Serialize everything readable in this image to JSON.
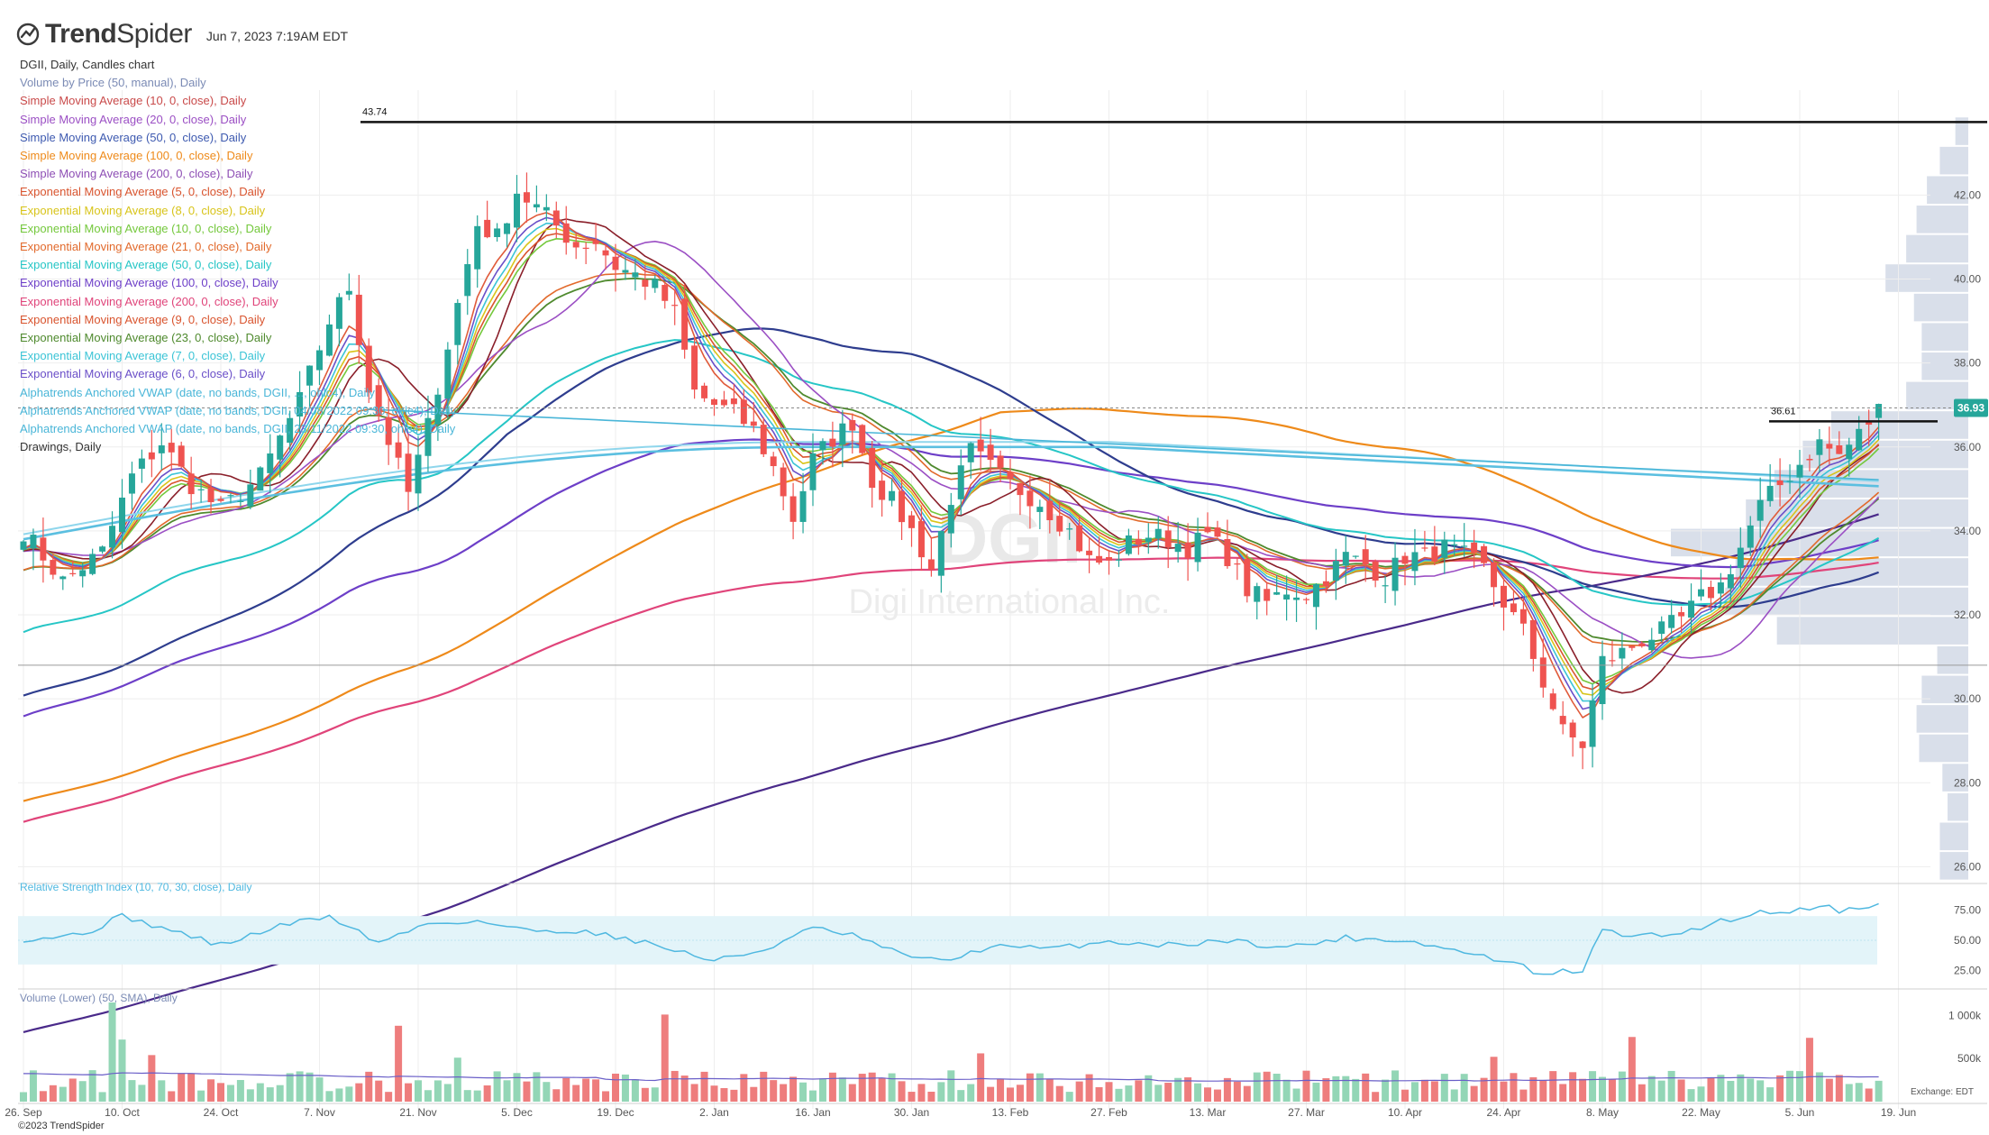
{
  "header": {
    "brand_bold": "Trend",
    "brand_rest": "Spider",
    "timestamp": "Jun 7, 2023 7:19AM EDT",
    "logo_icon": "trendspider-logo-icon"
  },
  "legend": [
    {
      "text": "DGII, Daily, Candles chart",
      "color": "#333333"
    },
    {
      "text": "Volume by Price (50, manual), Daily",
      "color": "#7b8bb5"
    },
    {
      "text": "Simple Moving Average (10, 0, close), Daily",
      "color": "#c94a4a"
    },
    {
      "text": "Simple Moving Average (20, 0, close), Daily",
      "color": "#9b4fc4"
    },
    {
      "text": "Simple Moving Average (50, 0, close), Daily",
      "color": "#3e5ab0"
    },
    {
      "text": "Simple Moving Average (100, 0, close), Daily",
      "color": "#ee8a1a"
    },
    {
      "text": "Simple Moving Average (200, 0, close), Daily",
      "color": "#8e4fb5"
    },
    {
      "text": "Exponential Moving Average (5, 0, close), Daily",
      "color": "#d9542e"
    },
    {
      "text": "Exponential Moving Average (8, 0, close), Daily",
      "color": "#d8c41a"
    },
    {
      "text": "Exponential Moving Average (10, 0, close), Daily",
      "color": "#74c83c"
    },
    {
      "text": "Exponential Moving Average (21, 0, close), Daily",
      "color": "#e26a2c"
    },
    {
      "text": "Exponential Moving Average (50, 0, close), Daily",
      "color": "#26c6c6"
    },
    {
      "text": "Exponential Moving Average (100, 0, close), Daily",
      "color": "#6d3fc8"
    },
    {
      "text": "Exponential Moving Average (200, 0, close), Daily",
      "color": "#e0447a"
    },
    {
      "text": "Exponential Moving Average (9, 0, close), Daily",
      "color": "#d9542e"
    },
    {
      "text": "Exponential Moving Average (23, 0, close), Daily",
      "color": "#4f8a2e"
    },
    {
      "text": "Exponential Moving Average (7, 0, close), Daily",
      "color": "#3bc4d6"
    },
    {
      "text": "Exponential Moving Average (6, 0, close), Daily",
      "color": "#6a4fc8"
    },
    {
      "text": "Alphatrends Anchored VWAP (date, no bands, DGII, ..., ohlc4), Daily",
      "color": "#4ab6d8"
    },
    {
      "text": "Alphatrends Anchored VWAP (date, no bands, DGII, 04/08/2022 09:30, ohlc4), Daily",
      "color": "#4ab6d8"
    },
    {
      "text": "Alphatrends Anchored VWAP (date, no bands, DGII, 23/11/2022 09:30, ohlc4), Daily",
      "color": "#4ab6d8"
    },
    {
      "text": "Drawings, Daily",
      "color": "#333333"
    }
  ],
  "watermark": {
    "ticker": "DGII",
    "company": "Digi International Inc."
  },
  "footer": {
    "copyright": "©2023 TrendSpider",
    "exchange": "Exchange: EDT"
  },
  "colors": {
    "up": "#26a69a",
    "down": "#ef5350",
    "up_vol": "#93d6b6",
    "down_vol": "#ee7d7d",
    "rsi": "#4fb8e0",
    "rsi_band": "#e3f4f9",
    "vbp": "#d2d9e6",
    "grid": "#eeeeee",
    "price_tag": "#26a69a"
  },
  "chart_data": [
    {
      "type": "candlestick",
      "ticker": "DGII",
      "ylim": [
        25.6,
        44.5
      ],
      "y_ticks": [
        "26.00",
        "28.00",
        "30.00",
        "32.00",
        "34.00",
        "36.00",
        "38.00",
        "40.00",
        "42.00"
      ],
      "x_ticks": [
        "26. Sep",
        "10. Oct",
        "24. Oct",
        "7. Nov",
        "21. Nov",
        "5. Dec",
        "19. Dec",
        "2. Jan",
        "16. Jan",
        "30. Jan",
        "13. Feb",
        "27. Feb",
        "13. Mar",
        "27. Mar",
        "10. Apr",
        "24. Apr",
        "8. May",
        "22. May",
        "5. Jun",
        "19. Jun"
      ],
      "last_price": "36.93",
      "horizontal_lines": [
        {
          "value": 43.74,
          "label": "43.74"
        },
        {
          "value": 36.61,
          "label": "36.61"
        },
        {
          "value": 30.8,
          "label": ""
        }
      ],
      "close_path": [
        [
          0,
          34.0
        ],
        [
          4,
          32.8
        ],
        [
          8,
          33.5
        ],
        [
          11,
          35.3
        ],
        [
          14,
          36.1
        ],
        [
          17,
          35.1
        ],
        [
          20,
          34.5
        ],
        [
          24,
          35.3
        ],
        [
          28,
          37.1
        ],
        [
          31,
          39.0
        ],
        [
          33,
          39.8
        ],
        [
          35,
          37.4
        ],
        [
          39,
          34.9
        ],
        [
          41,
          36.5
        ],
        [
          44,
          39.4
        ],
        [
          46,
          41.3
        ],
        [
          48,
          41.0
        ],
        [
          50,
          42.1
        ],
        [
          53,
          41.5
        ],
        [
          56,
          40.8
        ],
        [
          58,
          40.9
        ],
        [
          60,
          40.3
        ],
        [
          62,
          40.1
        ],
        [
          64,
          39.8
        ],
        [
          66,
          39.2
        ],
        [
          68,
          37.3
        ],
        [
          70,
          37.0
        ],
        [
          72,
          36.8
        ],
        [
          74,
          36.4
        ],
        [
          76,
          35.5
        ],
        [
          78,
          34.3
        ],
        [
          80,
          35.7
        ],
        [
          82,
          36.2
        ],
        [
          84,
          36.6
        ],
        [
          86,
          35.2
        ],
        [
          88,
          34.7
        ],
        [
          90,
          34.0
        ],
        [
          92,
          33.1
        ],
        [
          94,
          34.8
        ],
        [
          96,
          35.9
        ],
        [
          98,
          35.5
        ],
        [
          100,
          35.1
        ],
        [
          103,
          34.7
        ],
        [
          106,
          34.0
        ],
        [
          108,
          33.3
        ],
        [
          110,
          33.2
        ],
        [
          112,
          33.7
        ],
        [
          114,
          33.9
        ],
        [
          116,
          33.8
        ],
        [
          118,
          33.6
        ],
        [
          120,
          33.9
        ],
        [
          122,
          33.4
        ],
        [
          124,
          32.6
        ],
        [
          126,
          32.3
        ],
        [
          128,
          32.6
        ],
        [
          130,
          32.5
        ],
        [
          132,
          32.9
        ],
        [
          134,
          33.4
        ],
        [
          136,
          33.2
        ],
        [
          138,
          32.9
        ],
        [
          140,
          33.4
        ],
        [
          142,
          33.4
        ],
        [
          144,
          33.6
        ],
        [
          146,
          33.4
        ],
        [
          148,
          33.1
        ],
        [
          150,
          32.3
        ],
        [
          152,
          31.6
        ],
        [
          154,
          30.4
        ],
        [
          156,
          29.2
        ],
        [
          158,
          28.9
        ],
        [
          160,
          30.9
        ],
        [
          162,
          31.1
        ],
        [
          164,
          31.4
        ],
        [
          166,
          31.6
        ],
        [
          168,
          31.9
        ],
        [
          170,
          32.4
        ],
        [
          172,
          32.7
        ],
        [
          174,
          33.6
        ],
        [
          176,
          34.6
        ],
        [
          178,
          35.1
        ],
        [
          180,
          35.6
        ],
        [
          182,
          36.1
        ],
        [
          184,
          35.8
        ],
        [
          186,
          36.3
        ],
        [
          188,
          36.9
        ]
      ],
      "volume_by_price": [
        [
          26.0,
          0.11
        ],
        [
          26.7,
          0.11
        ],
        [
          27.4,
          0.08
        ],
        [
          28.1,
          0.1
        ],
        [
          28.8,
          0.19
        ],
        [
          29.5,
          0.2
        ],
        [
          30.2,
          0.18
        ],
        [
          30.9,
          0.12
        ],
        [
          31.6,
          0.74
        ],
        [
          32.3,
          0.94
        ],
        [
          33.0,
          0.9
        ],
        [
          33.7,
          1.15
        ],
        [
          34.4,
          0.86
        ],
        [
          35.1,
          0.75
        ],
        [
          35.8,
          0.64
        ],
        [
          36.5,
          0.53
        ],
        [
          37.2,
          0.24
        ],
        [
          37.9,
          0.18
        ],
        [
          38.6,
          0.18
        ],
        [
          39.3,
          0.21
        ],
        [
          40.0,
          0.32
        ],
        [
          40.7,
          0.24
        ],
        [
          41.4,
          0.2
        ],
        [
          42.1,
          0.16
        ],
        [
          42.8,
          0.11
        ],
        [
          43.5,
          0.05
        ]
      ]
    },
    {
      "type": "line",
      "title": "Relative Strength Index (10, 70, 30, close), Daily",
      "ylim": [
        15,
        85
      ],
      "y_ticks": [
        "25.00",
        "50.00",
        "75.00"
      ],
      "band": [
        30,
        70
      ],
      "rsi_path": [
        [
          0,
          51
        ],
        [
          6,
          55
        ],
        [
          10,
          70
        ],
        [
          15,
          58
        ],
        [
          20,
          46
        ],
        [
          26,
          62
        ],
        [
          31,
          70
        ],
        [
          36,
          48
        ],
        [
          41,
          64
        ],
        [
          46,
          66
        ],
        [
          51,
          58
        ],
        [
          56,
          58
        ],
        [
          61,
          52
        ],
        [
          66,
          42
        ],
        [
          70,
          33
        ],
        [
          75,
          42
        ],
        [
          80,
          60
        ],
        [
          84,
          54
        ],
        [
          88,
          41
        ],
        [
          93,
          32
        ],
        [
          98,
          45
        ],
        [
          104,
          43
        ],
        [
          110,
          49
        ],
        [
          116,
          46
        ],
        [
          122,
          50
        ],
        [
          128,
          44
        ],
        [
          134,
          52
        ],
        [
          140,
          50
        ],
        [
          146,
          40
        ],
        [
          150,
          33
        ],
        [
          152,
          28
        ],
        [
          154,
          20
        ],
        [
          156,
          24
        ],
        [
          158,
          25
        ],
        [
          160,
          58
        ],
        [
          164,
          53
        ],
        [
          168,
          56
        ],
        [
          172,
          66
        ],
        [
          176,
          73
        ],
        [
          180,
          75
        ],
        [
          182,
          80
        ],
        [
          184,
          74
        ],
        [
          186,
          78
        ],
        [
          188,
          79
        ]
      ]
    },
    {
      "type": "bar",
      "title": "Volume (Lower) (50, SMA), Daily",
      "ylim": [
        0,
        1150
      ],
      "y_ticks": [
        "500k",
        "1 000k"
      ],
      "spikes": [
        [
          9,
          1150
        ],
        [
          10,
          720
        ],
        [
          13,
          540
        ],
        [
          38,
          880
        ],
        [
          44,
          510
        ],
        [
          65,
          1010
        ],
        [
          97,
          560
        ],
        [
          149,
          520
        ],
        [
          163,
          750
        ],
        [
          181,
          740
        ]
      ]
    }
  ]
}
